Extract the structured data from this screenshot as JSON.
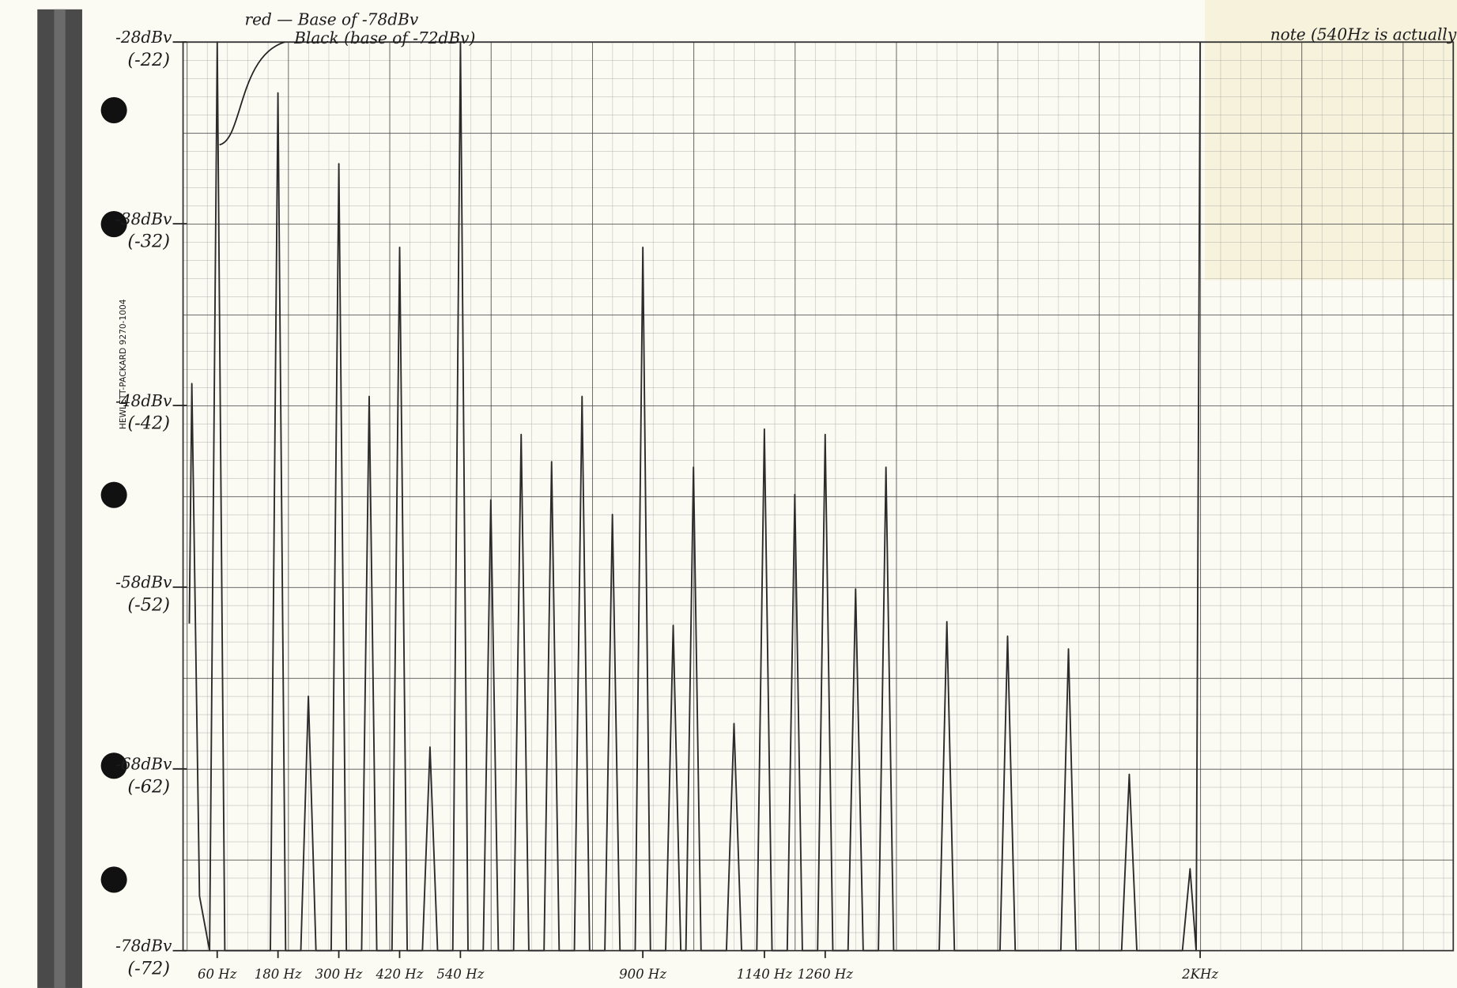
{
  "chart_data": {
    "type": "line",
    "annotations": [
      "red — Base of -78dBv",
      "Black (base of -72dBv)",
      "note (540Hz is actually"
    ],
    "paper_label": "HEWLETT-PACKARD 9270-1004",
    "color": "#2b2b2b",
    "xlim": [
      0,
      2000
    ],
    "xticks": [
      {
        "value": 60,
        "label": "60 Hz"
      },
      {
        "value": 180,
        "label": "180 Hz"
      },
      {
        "value": 300,
        "label": "300 Hz"
      },
      {
        "value": 420,
        "label": "420 Hz"
      },
      {
        "value": 540,
        "label": "540 Hz"
      },
      {
        "value": 900,
        "label": "900 Hz"
      },
      {
        "value": 1140,
        "label": "1140 Hz"
      },
      {
        "value": 1260,
        "label": "1260 Hz"
      },
      {
        "value": 2000,
        "label": "2KHz"
      }
    ],
    "ylim": [
      -78,
      -28
    ],
    "yticks": [
      {
        "value": -28,
        "label": "-28dBv"
      },
      {
        "value": -38,
        "label": "-38dBv"
      },
      {
        "value": -48,
        "label": "-48dBv"
      },
      {
        "value": -58,
        "label": "-58dBv"
      },
      {
        "value": -68,
        "label": "-68dBv"
      },
      {
        "value": -78,
        "label": "-78dBv"
      }
    ],
    "y2lim": [
      -72,
      -22
    ],
    "y2ticks": [
      {
        "value": -22,
        "label": "(-22)"
      },
      {
        "value": -32,
        "label": "(-32)"
      },
      {
        "value": -42,
        "label": "(-42)"
      },
      {
        "value": -52,
        "label": "(-52)"
      },
      {
        "value": -62,
        "label": "(-62)"
      },
      {
        "value": -72,
        "label": "(-72)"
      }
    ],
    "x": [
      5,
      10,
      25,
      45,
      60,
      75,
      165,
      180,
      195,
      225,
      240,
      255,
      285,
      300,
      315,
      345,
      360,
      375,
      405,
      420,
      435,
      465,
      480,
      495,
      525,
      540,
      555,
      585,
      600,
      615,
      645,
      660,
      675,
      705,
      720,
      735,
      765,
      780,
      795,
      825,
      840,
      855,
      885,
      900,
      915,
      945,
      960,
      975,
      985,
      1000,
      1015,
      1065,
      1080,
      1095,
      1125,
      1140,
      1155,
      1185,
      1200,
      1215,
      1245,
      1260,
      1275,
      1305,
      1320,
      1335,
      1365,
      1380,
      1395,
      1485,
      1500,
      1515,
      1605,
      1620,
      1635,
      1725,
      1740,
      1755,
      1845,
      1860,
      1875,
      1965,
      1980,
      1992,
      2000
    ],
    "values": [
      -60,
      -46.8,
      -75,
      -78,
      -28,
      -78,
      -78,
      -30.8,
      -78,
      -78,
      -64,
      -78,
      -78,
      -34.7,
      -78,
      -78,
      -47.5,
      -78,
      -78,
      -39.3,
      -78,
      -78,
      -66.8,
      -78,
      -78,
      -28,
      -78,
      -78,
      -53.2,
      -78,
      -78,
      -49.6,
      -78,
      -78,
      -51.1,
      -78,
      -78,
      -47.5,
      -78,
      -78,
      -54,
      -78,
      -78,
      -39.3,
      -78,
      -78,
      -60.1,
      -78,
      -78,
      -51.4,
      -78,
      -78,
      -65.5,
      -78,
      -78,
      -49.3,
      -78,
      -78,
      -52.9,
      -78,
      -78,
      -49.6,
      -78,
      -78,
      -58.1,
      -78,
      -78,
      -51.4,
      -78,
      -78,
      -59.9,
      -78,
      -78,
      -60.7,
      -78,
      -78,
      -61.4,
      -78,
      -78,
      -68.3,
      -78,
      -78,
      -73.5,
      -78,
      -28
    ]
  }
}
